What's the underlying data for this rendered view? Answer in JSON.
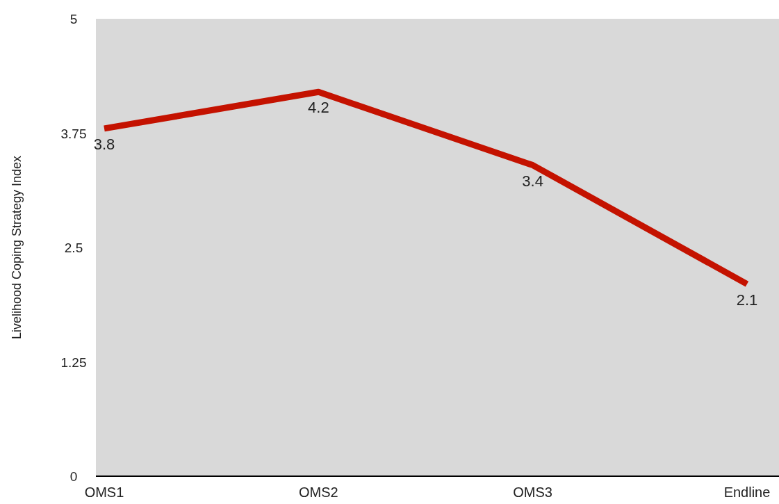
{
  "chart_data": {
    "type": "line",
    "ylabel": "Livelihood Coping Strategy Index",
    "categories": [
      "OMS1",
      "OMS2",
      "OMS3",
      "Endline"
    ],
    "series": [
      {
        "color": "#c41200",
        "values": [
          3.8,
          4.2,
          3.4,
          2.1
        ]
      }
    ],
    "ylim": [
      0,
      5
    ],
    "yticks": [
      0,
      1.25,
      2.5,
      3.75,
      5
    ],
    "data_labels": true,
    "marker": "none",
    "line_style": "solid"
  }
}
